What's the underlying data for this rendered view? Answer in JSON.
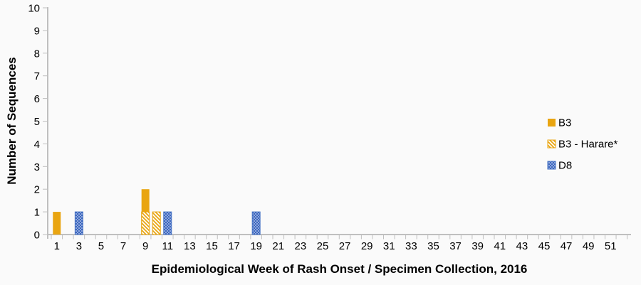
{
  "chart_data": {
    "type": "bar",
    "stacked": true,
    "title": "",
    "xlabel": "Epidemiological Week of Rash Onset / Specimen Collection, 2016",
    "ylabel": "Number of Sequences",
    "ylim": [
      0,
      10
    ],
    "y_ticks": [
      0,
      1,
      2,
      3,
      4,
      5,
      6,
      7,
      8,
      9,
      10
    ],
    "x_weeks": 52,
    "x_tick_labels": [
      1,
      3,
      5,
      7,
      9,
      11,
      13,
      15,
      17,
      19,
      21,
      23,
      25,
      27,
      29,
      31,
      33,
      35,
      37,
      39,
      41,
      43,
      45,
      47,
      49,
      51
    ],
    "grid": false,
    "legend_position": "middle-right",
    "series": [
      {
        "name": "B3",
        "pattern": "solid",
        "points": [
          {
            "week": 1,
            "value": 1
          },
          {
            "week": 9,
            "value": 1
          }
        ]
      },
      {
        "name": "B3 - Harare*",
        "pattern": "hatch",
        "points": [
          {
            "week": 9,
            "value": 1
          },
          {
            "week": 10,
            "value": 1
          }
        ]
      },
      {
        "name": "D8",
        "pattern": "check",
        "points": [
          {
            "week": 3,
            "value": 1
          },
          {
            "week": 11,
            "value": 1
          },
          {
            "week": 19,
            "value": 1
          }
        ]
      }
    ],
    "colors": {
      "gold": "#E9A511",
      "blue": "#4472C4",
      "blue_light": "#8FA8DC",
      "blue_dark": "#3C66BE",
      "hatch_bg": "#FFFFFF",
      "axis": "#BFBFBF",
      "text": "#000000",
      "background": "#FAFAFA"
    }
  }
}
